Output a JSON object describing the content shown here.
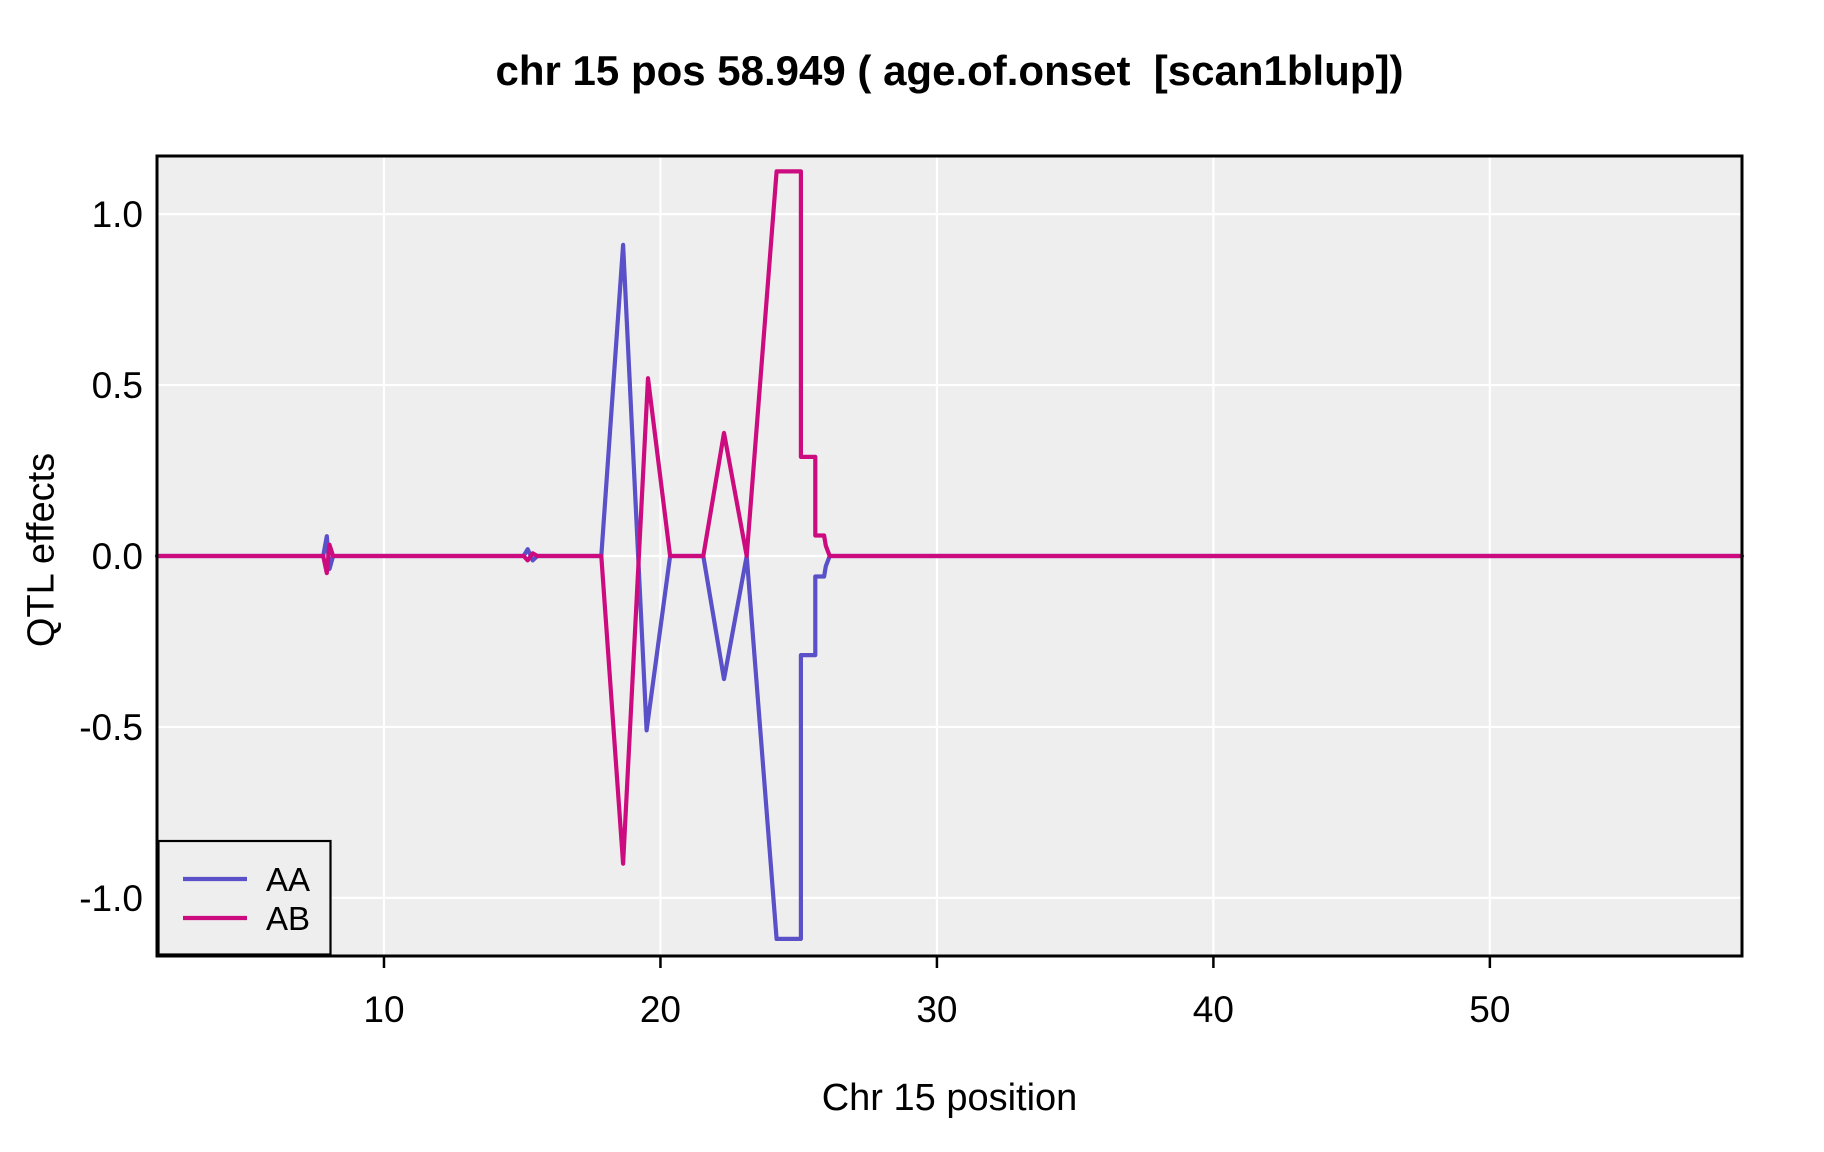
{
  "figure": {
    "background": "#ffffff",
    "panel_background": "#EFEEEE",
    "grid_color": "#ffffff",
    "border_color": "#000000",
    "tick_color": "#000000"
  },
  "chart_data": {
    "type": "line",
    "title": "chr 15 pos 58.949 ( age.of.onset  [scan1blup])",
    "xlabel": "Chr 15 position",
    "ylabel": "QTL effects",
    "xlim": [
      1.79,
      59.12
    ],
    "ylim": [
      -1.17,
      1.17
    ],
    "x_ticks": [
      {
        "v": 10,
        "label": "10"
      },
      {
        "v": 20,
        "label": "20"
      },
      {
        "v": 30,
        "label": "30"
      },
      {
        "v": 40,
        "label": "40"
      },
      {
        "v": 50,
        "label": "50"
      }
    ],
    "y_ticks": [
      {
        "v": -1.0,
        "label": "-1.0"
      },
      {
        "v": -0.5,
        "label": "-0.5"
      },
      {
        "v": 0.0,
        "label": "0.0"
      },
      {
        "v": 0.5,
        "label": "0.5"
      },
      {
        "v": 1.0,
        "label": "1.0"
      }
    ],
    "grid": true,
    "legend_position": "bottom-left",
    "series": [
      {
        "name": "AA",
        "color": "#5A50C8",
        "points": [
          [
            1.79,
            0
          ],
          [
            7.8,
            0
          ],
          [
            7.93,
            0.058
          ],
          [
            8.03,
            -0.038
          ],
          [
            8.16,
            0
          ],
          [
            15.05,
            0
          ],
          [
            15.2,
            0.02
          ],
          [
            15.38,
            -0.013
          ],
          [
            15.55,
            0
          ],
          [
            17.86,
            0
          ],
          [
            18.65,
            0.91
          ],
          [
            19.5,
            -0.51
          ],
          [
            20.35,
            0
          ],
          [
            21.55,
            0
          ],
          [
            22.3,
            -0.36
          ],
          [
            23.12,
            0
          ],
          [
            24.2,
            -1.12
          ],
          [
            25.08,
            -1.12
          ],
          [
            25.08,
            -0.29
          ],
          [
            25.6,
            -0.29
          ],
          [
            25.6,
            -0.06
          ],
          [
            25.92,
            -0.06
          ],
          [
            25.98,
            -0.03
          ],
          [
            26.12,
            0
          ],
          [
            59.12,
            0
          ]
        ]
      },
      {
        "name": "AB",
        "color": "#CC0C7E",
        "points": [
          [
            1.79,
            0
          ],
          [
            7.8,
            0
          ],
          [
            7.93,
            -0.05
          ],
          [
            8.03,
            0.033
          ],
          [
            8.16,
            0
          ],
          [
            15.05,
            0
          ],
          [
            15.2,
            -0.013
          ],
          [
            15.38,
            0.008
          ],
          [
            15.55,
            0
          ],
          [
            17.86,
            0
          ],
          [
            18.65,
            -0.9
          ],
          [
            19.55,
            0.52
          ],
          [
            20.35,
            0
          ],
          [
            21.55,
            0
          ],
          [
            22.3,
            0.36
          ],
          [
            23.12,
            0
          ],
          [
            24.2,
            1.125
          ],
          [
            25.08,
            1.125
          ],
          [
            25.08,
            0.29
          ],
          [
            25.6,
            0.29
          ],
          [
            25.6,
            0.06
          ],
          [
            25.92,
            0.06
          ],
          [
            25.98,
            0.03
          ],
          [
            26.12,
            0
          ],
          [
            59.12,
            0
          ]
        ]
      }
    ]
  }
}
